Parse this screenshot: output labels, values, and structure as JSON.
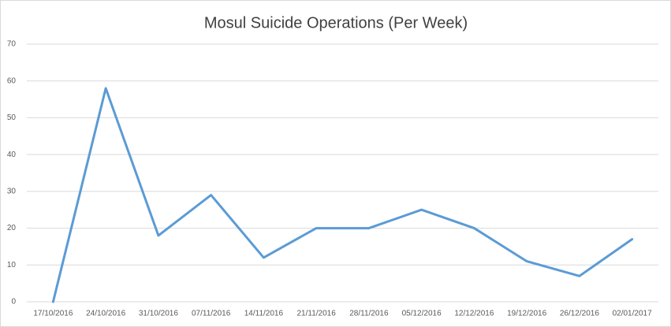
{
  "chart_data": {
    "type": "line",
    "title": "Mosul Suicide Operations (Per Week)",
    "categories": [
      "17/10/2016",
      "24/10/2016",
      "31/10/2016",
      "07/11/2016",
      "14/11/2016",
      "21/11/2016",
      "28/11/2016",
      "05/12/2016",
      "12/12/2016",
      "19/12/2016",
      "26/12/2016",
      "02/01/2017"
    ],
    "values": [
      0,
      58,
      18,
      29,
      12,
      20,
      20,
      25,
      20,
      11,
      7,
      17
    ],
    "color": "#5b9bd5",
    "ylim": [
      0,
      70
    ],
    "yticks": [
      0,
      10,
      20,
      30,
      40,
      50,
      60,
      70
    ],
    "grid": true
  }
}
